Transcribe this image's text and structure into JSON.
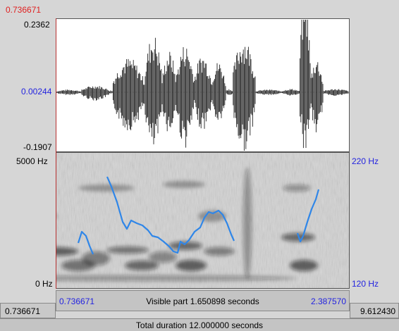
{
  "cursor_time": "0.736671",
  "waveform": {
    "y_max": "0.2362",
    "y_mid": "0.00244",
    "y_min": "-0.1907"
  },
  "spectrogram": {
    "freq_max": "5000 Hz",
    "freq_min": "0 Hz"
  },
  "pitch": {
    "max": "220 Hz",
    "min": "120 Hz"
  },
  "visible_window": {
    "start": "0.736671",
    "end": "2.387570",
    "label": "Visible part 1.650898 seconds"
  },
  "whole_file": {
    "start": "0.736671",
    "end": "9.612430",
    "total_label": "Total duration 12.000000 seconds"
  },
  "colors": {
    "pitch_track": "#2f86e8",
    "cursor": "#e02020",
    "axis_blue": "#2323e0"
  }
}
